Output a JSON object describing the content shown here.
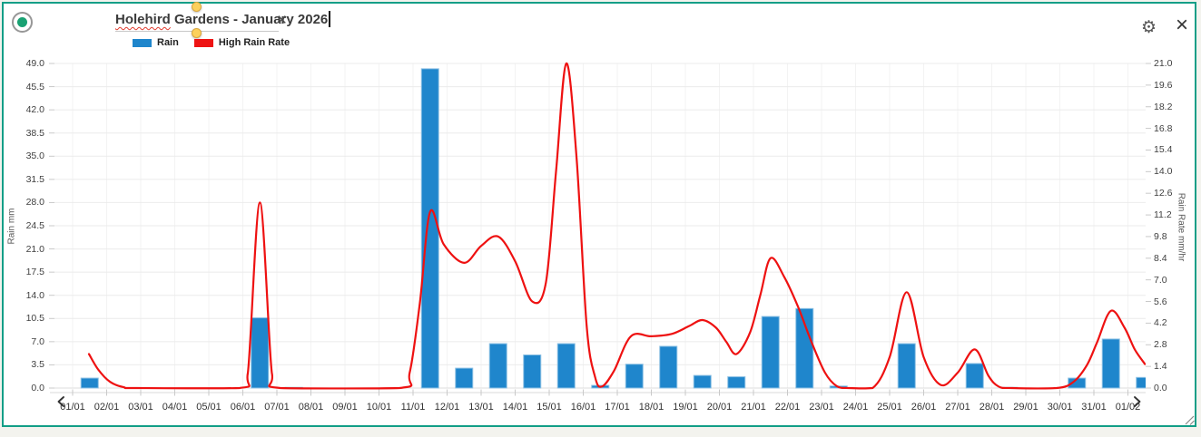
{
  "header": {
    "radio_selected": true,
    "title": "Holehird Gardens - January 2026",
    "title_misspelled_word": "Holehird",
    "title_rest": " Gardens - January 2026",
    "icons": {
      "clear": "×",
      "settings": "⚙",
      "close": "×"
    }
  },
  "legend": {
    "items": [
      {
        "label": "Rain",
        "color": "#1f86cc"
      },
      {
        "label": "High Rain Rate",
        "color": "#ee1313"
      }
    ]
  },
  "chart_data": {
    "type": "combo",
    "title": "Holehird Gardens - January 2026",
    "categories": [
      "01/01",
      "02/01",
      "03/01",
      "04/01",
      "05/01",
      "06/01",
      "07/01",
      "08/01",
      "09/01",
      "10/01",
      "11/01",
      "12/01",
      "13/01",
      "14/01",
      "15/01",
      "16/01",
      "17/01",
      "18/01",
      "19/01",
      "20/01",
      "21/01",
      "22/01",
      "23/01",
      "24/01",
      "25/01",
      "26/01",
      "27/01",
      "28/01",
      "29/01",
      "30/01",
      "31/01",
      "01/02"
    ],
    "series": [
      {
        "name": "Rain",
        "type": "bar",
        "yaxis": "left",
        "color": "#1f86cc",
        "border_color": "#8cc0e4",
        "values": [
          1.5,
          0,
          0,
          0,
          0,
          10.6,
          0.1,
          0,
          0,
          0,
          48.2,
          3.0,
          6.7,
          5.0,
          6.7,
          0.4,
          3.6,
          6.3,
          1.9,
          1.7,
          10.8,
          12.0,
          0.3,
          0,
          6.7,
          0,
          3.7,
          0.1,
          0,
          1.5,
          7.4,
          1.6
        ]
      },
      {
        "name": "High Rain Rate",
        "type": "line",
        "yaxis": "right",
        "color": "#ee1111",
        "points_day_value": [
          [
            0.48,
            2.2
          ],
          [
            0.75,
            1.2
          ],
          [
            1.1,
            0.4
          ],
          [
            1.5,
            0.05
          ],
          [
            1.9,
            0
          ],
          [
            4.9,
            0
          ],
          [
            5.15,
            1.0
          ],
          [
            5.5,
            12.0
          ],
          [
            5.85,
            1.0
          ],
          [
            6.1,
            0
          ],
          [
            9.6,
            0
          ],
          [
            9.9,
            1.0
          ],
          [
            10.2,
            5.5
          ],
          [
            10.5,
            11.4
          ],
          [
            10.9,
            9.3
          ],
          [
            11.5,
            8.1
          ],
          [
            12.0,
            9.2
          ],
          [
            12.5,
            9.8
          ],
          [
            13.0,
            8.2
          ],
          [
            13.5,
            5.6
          ],
          [
            13.9,
            6.8
          ],
          [
            14.2,
            14.0
          ],
          [
            14.5,
            21.0
          ],
          [
            14.8,
            15.0
          ],
          [
            15.1,
            4.0
          ],
          [
            15.35,
            0.7
          ],
          [
            15.55,
            0.1
          ],
          [
            15.9,
            1.1
          ],
          [
            16.4,
            3.35
          ],
          [
            17.0,
            3.35
          ],
          [
            17.6,
            3.5
          ],
          [
            18.1,
            4.0
          ],
          [
            18.5,
            4.4
          ],
          [
            18.9,
            3.9
          ],
          [
            19.2,
            3.0
          ],
          [
            19.5,
            2.2
          ],
          [
            19.9,
            3.6
          ],
          [
            20.2,
            6.0
          ],
          [
            20.5,
            8.4
          ],
          [
            20.9,
            7.2
          ],
          [
            21.3,
            5.3
          ],
          [
            21.7,
            3.0
          ],
          [
            22.1,
            1.0
          ],
          [
            22.45,
            0.12
          ],
          [
            22.8,
            0
          ],
          [
            23.5,
            0
          ],
          [
            24.0,
            2.0
          ],
          [
            24.5,
            6.2
          ],
          [
            25.0,
            2.0
          ],
          [
            25.5,
            0.2
          ],
          [
            26.0,
            1.0
          ],
          [
            26.5,
            2.5
          ],
          [
            26.9,
            0.8
          ],
          [
            27.2,
            0.1
          ],
          [
            27.6,
            0
          ],
          [
            28.9,
            0
          ],
          [
            29.4,
            0.4
          ],
          [
            29.8,
            1.5
          ],
          [
            30.1,
            3.0
          ],
          [
            30.5,
            5.0
          ],
          [
            30.9,
            3.9
          ],
          [
            31.2,
            2.5
          ],
          [
            31.5,
            1.55
          ]
        ]
      }
    ],
    "left_axis": {
      "title": "Rain mm",
      "min": 0,
      "max": 49,
      "step": 3.5,
      "tick_labels": [
        "0.0",
        "3.5",
        "7.0",
        "10.5",
        "14.0",
        "17.5",
        "21.0",
        "24.5",
        "28.0",
        "31.5",
        "35.0",
        "38.5",
        "42.0",
        "45.5",
        "49.0"
      ]
    },
    "right_axis": {
      "title": "Rain Rate mm/hr",
      "min": 0,
      "max": 21,
      "step": 1.4,
      "tick_labels": [
        "0.0",
        "1.4",
        "2.8",
        "4.2",
        "5.6",
        "7.0",
        "8.4",
        "9.8",
        "11.2",
        "12.6",
        "14.0",
        "15.4",
        "16.8",
        "18.2",
        "19.6",
        "21.0"
      ]
    },
    "x_axis": {
      "labels": [
        "01/01",
        "02/01",
        "03/01",
        "04/01",
        "05/01",
        "06/01",
        "07/01",
        "08/01",
        "09/01",
        "10/01",
        "11/01",
        "12/01",
        "13/01",
        "14/01",
        "15/01",
        "16/01",
        "17/01",
        "18/01",
        "19/01",
        "20/01",
        "21/01",
        "22/01",
        "23/01",
        "24/01",
        "25/01",
        "26/01",
        "27/01",
        "28/01",
        "29/01",
        "30/01",
        "31/01",
        "01/02"
      ]
    },
    "grid": true,
    "legend_position": "top-left"
  }
}
